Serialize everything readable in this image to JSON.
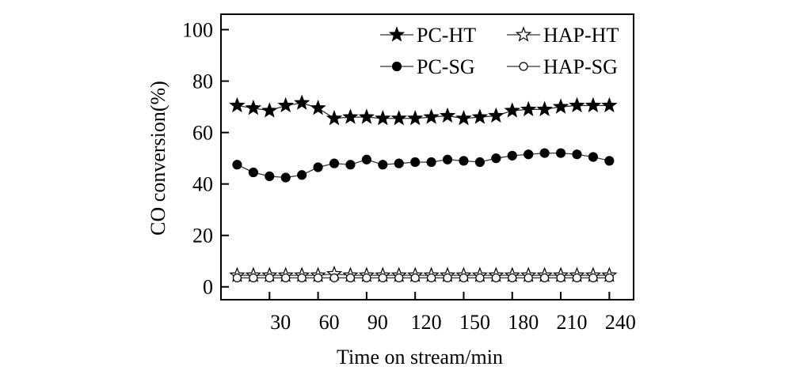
{
  "chart_data": {
    "type": "line",
    "xlabel": "Time on stream/min",
    "ylabel": "CO conversion(%)",
    "xlim": [
      0,
      255
    ],
    "ylim": [
      -5,
      106
    ],
    "xticks": [
      30,
      60,
      90,
      120,
      150,
      180,
      210,
      240
    ],
    "yticks": [
      0,
      20,
      40,
      60,
      80,
      100
    ],
    "legend_position": "top-right",
    "x": [
      10,
      20,
      30,
      40,
      50,
      60,
      70,
      80,
      90,
      100,
      110,
      120,
      130,
      140,
      150,
      160,
      170,
      180,
      190,
      200,
      210,
      220,
      230,
      240
    ],
    "series": [
      {
        "name": "PC-HT",
        "marker": "filled-star",
        "values": [
          70.5,
          69.5,
          68.5,
          70.5,
          71.5,
          69.5,
          65.5,
          66,
          66,
          65.5,
          65.5,
          65.5,
          66,
          66.5,
          65.5,
          66,
          66.5,
          68.5,
          69,
          69,
          70,
          70.5,
          70.5,
          70.5
        ]
      },
      {
        "name": "HAP-HT",
        "marker": "open-star",
        "values": [
          4.5,
          4.5,
          4.5,
          4.5,
          4.5,
          4.5,
          5,
          4.5,
          4.5,
          4.5,
          4.5,
          4.5,
          4.5,
          4.5,
          4.5,
          4.5,
          4.5,
          4.5,
          4.5,
          4.5,
          4.5,
          4.5,
          4.5,
          4.5
        ]
      },
      {
        "name": "PC-SG",
        "marker": "filled-circle",
        "values": [
          47.5,
          44.5,
          43,
          42.5,
          43.5,
          46.5,
          48,
          47.5,
          49.5,
          47.5,
          48,
          48.5,
          48.5,
          49.5,
          49,
          48.5,
          50,
          51,
          51.5,
          52,
          52,
          51.5,
          50.5,
          49
        ]
      },
      {
        "name": "HAP-SG",
        "marker": "open-circle",
        "values": [
          3.5,
          3.5,
          3.5,
          3.5,
          3.5,
          3.5,
          3.5,
          3.5,
          3.5,
          3.5,
          3.5,
          3.5,
          3.5,
          3.5,
          3.5,
          3.5,
          3.5,
          3.5,
          3.5,
          3.5,
          3.5,
          3.5,
          3.5,
          3.5
        ]
      }
    ]
  }
}
